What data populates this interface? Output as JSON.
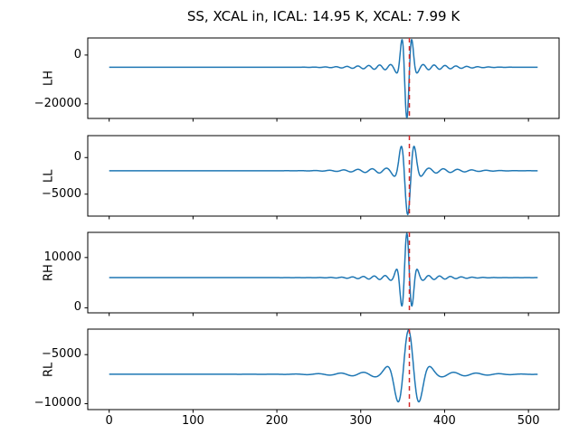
{
  "title": "SS, XCAL in, ICAL: 14.95 K, XCAL: 7.99 K",
  "colors": {
    "trace": "#1f77b4",
    "cursor": "#d62728",
    "axis": "#000000",
    "background": "#ffffff"
  },
  "x_axis": {
    "ticks": [
      0,
      100,
      200,
      300,
      400,
      500
    ],
    "tick_labels": [
      "0",
      "100",
      "200",
      "300",
      "400",
      "500"
    ]
  },
  "chart_data": {
    "type": "line",
    "x_range": [
      0,
      511
    ],
    "xlim": [
      -25.55,
      536.55
    ],
    "cursor_x": 358,
    "cursor_style": "dashed",
    "legend": "none",
    "grid": false,
    "panels": [
      {
        "ylabel": "LH",
        "ylim": [
          -26000,
          7000
        ],
        "yticks": [
          0,
          -20000
        ],
        "ytick_labels": [
          "0",
          "−20000"
        ],
        "signal": {
          "baseline": -5000,
          "amplitude": 19800,
          "sign": -1,
          "wavelength": 13,
          "center": 355,
          "burst_width": 7.5,
          "ripple_amp": 0.06,
          "ripple_width": 65
        }
      },
      {
        "ylabel": "LL",
        "ylim": [
          -8000,
          3000
        ],
        "yticks": [
          0,
          -5000
        ],
        "ytick_labels": [
          "0",
          "−5000"
        ],
        "signal": {
          "baseline": -1800,
          "amplitude": 5600,
          "sign": -1,
          "wavelength": 17,
          "center": 356,
          "burst_width": 10,
          "ripple_amp": 0.07,
          "ripple_width": 70
        }
      },
      {
        "ylabel": "RH",
        "ylim": [
          -1000,
          15000
        ],
        "yticks": [
          10000,
          0
        ],
        "ytick_labels": [
          "10000",
          "0"
        ],
        "signal": {
          "baseline": 6000,
          "amplitude": 8300,
          "sign": 1,
          "wavelength": 13,
          "center": 355,
          "burst_width": 9,
          "ripple_amp": 0.06,
          "ripple_width": 60
        }
      },
      {
        "ylabel": "RL",
        "ylim": [
          -10600,
          -2400
        ],
        "yticks": [
          -5000,
          -10000
        ],
        "ytick_labels": [
          "−5000",
          "−10000"
        ],
        "signal": {
          "baseline": -7000,
          "amplitude": 4200,
          "sign": 1,
          "wavelength": 27,
          "center": 357,
          "burst_width": 18,
          "ripple_amp": 0.07,
          "ripple_width": 85
        }
      }
    ]
  }
}
